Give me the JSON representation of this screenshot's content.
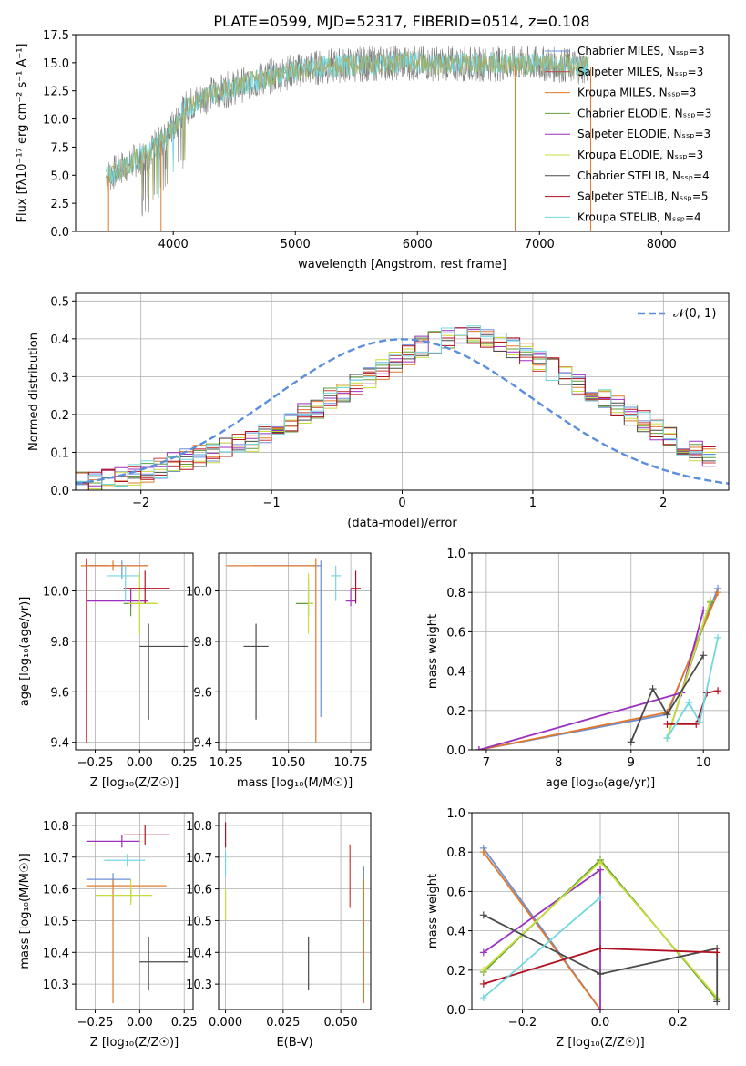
{
  "page": {
    "title": "PLATE=0599, MJD=52317, FIBERID=0514, z=0.108"
  },
  "colors": {
    "Chabrier MILES": "#6a8fd8",
    "Salpeter MILES": "#cc3b3b",
    "Kroupa MILES": "#e0782a",
    "Chabrier ELODIE": "#5f9e3a",
    "Salpeter ELODIE": "#9b30c0",
    "Kroupa ELODIE": "#c8dc3a",
    "Chabrier STELIB": "#4a4a4a",
    "Salpeter STELIB": "#b01020",
    "Kroupa STELIB": "#70d8e0"
  },
  "chart_data": [
    {
      "id": "spectrum",
      "type": "line",
      "xlabel": "wavelength [Angstrom, rest frame]",
      "ylabel": "Flux [fλ10⁻¹⁷ erg cm⁻² s⁻¹ A⁻¹]",
      "xlim": [
        3200,
        8550
      ],
      "ylim": [
        0,
        17.5
      ],
      "xticks": [
        4000,
        5000,
        6000,
        7000,
        8000
      ],
      "yticks": [
        0.0,
        2.5,
        5.0,
        7.5,
        10.0,
        12.5,
        15.0,
        17.5
      ],
      "ytick_labels": [
        "0.0",
        "2.5",
        "5.0",
        "7.5",
        "10.0",
        "12.5",
        "15.0",
        "17.5"
      ],
      "grid": false,
      "legend": "right",
      "legend_entries": [
        "Chabrier MILES, N_SSP=3",
        "Salpeter MILES, N_SSP=3",
        "Kroupa MILES, N_SSP=3",
        "Chabrier ELODIE, N_SSP=3",
        "Salpeter ELODIE, N_SSP=3",
        "Kroupa ELODIE, N_SSP=3",
        "Chabrier STELIB, N_SSP=4",
        "Salpeter STELIB, N_SSP=5",
        "Kroupa STELIB, N_SSP=4"
      ],
      "continuum": {
        "x": [
          3450,
          3600,
          3800,
          3950,
          4100,
          4300,
          4500,
          4800,
          5100,
          5400,
          5800,
          6200,
          6600,
          7000,
          7300,
          7400
        ],
        "y": [
          4.8,
          5.8,
          7.0,
          8.5,
          11.0,
          12.2,
          12.8,
          13.8,
          14.5,
          14.8,
          15.0,
          14.9,
          14.9,
          14.9,
          14.7,
          14.6
        ]
      }
    },
    {
      "id": "residuals",
      "type": "histogram",
      "xlabel": "(data-model)/error",
      "ylabel": "Normed distribution",
      "xlim": [
        -2.5,
        2.5
      ],
      "ylim": [
        0,
        0.52
      ],
      "xticks": [
        -2,
        -1,
        0,
        1,
        2
      ],
      "xtick_labels": [
        "−2",
        "−1",
        "0",
        "1",
        "2"
      ],
      "yticks": [
        0.0,
        0.1,
        0.2,
        0.3,
        0.4,
        0.5
      ],
      "ytick_labels": [
        "0.0",
        "0.1",
        "0.2",
        "0.3",
        "0.4",
        "0.5"
      ],
      "grid": true,
      "legend": "top-right",
      "legend_entries": [
        "𝒩(0, 1)"
      ],
      "bin_width": 0.1,
      "bin_start": -2.5,
      "base_profile": [
        0.02,
        0.02,
        0.03,
        0.03,
        0.04,
        0.05,
        0.06,
        0.07,
        0.08,
        0.09,
        0.1,
        0.11,
        0.12,
        0.13,
        0.15,
        0.16,
        0.18,
        0.2,
        0.22,
        0.24,
        0.26,
        0.28,
        0.3,
        0.32,
        0.34,
        0.36,
        0.38,
        0.39,
        0.4,
        0.41,
        0.41,
        0.4,
        0.39,
        0.38,
        0.36,
        0.34,
        0.32,
        0.3,
        0.28,
        0.26,
        0.24,
        0.22,
        0.2,
        0.18,
        0.16,
        0.14,
        0.12,
        0.1,
        0.09
      ]
    },
    {
      "id": "age_vs_Z",
      "type": "errorbar",
      "xlabel": "Z [log₁₀(Z/Z☉)]",
      "ylabel": "age  [log₁₀(age/yr)]",
      "xlim": [
        -0.36,
        0.3
      ],
      "ylim": [
        9.37,
        10.15
      ],
      "xticks": [
        -0.25,
        0.0,
        0.25
      ],
      "xtick_labels": [
        "−0.25",
        "0.00",
        "0.25"
      ],
      "yticks": [
        9.4,
        9.6,
        9.8,
        10.0
      ],
      "ytick_labels": [
        "9.4",
        "9.6",
        "9.8",
        "10.0"
      ],
      "grid": true,
      "points": [
        {
          "series": "Chabrier MILES",
          "x": -0.1,
          "y": 10.1,
          "xerr": [
            0.2,
            0.14
          ],
          "yerr": [
            0.05,
            0.02
          ]
        },
        {
          "series": "Salpeter MILES",
          "x": -0.3,
          "y": 10.1,
          "xerr": [
            0.01,
            0.12
          ],
          "yerr": [
            0.7,
            0.03
          ]
        },
        {
          "series": "Kroupa MILES",
          "x": -0.15,
          "y": 10.1,
          "xerr": [
            0.18,
            0.2
          ],
          "yerr": [
            0.02,
            0.02
          ]
        },
        {
          "series": "Chabrier ELODIE",
          "x": -0.05,
          "y": 9.95,
          "xerr": [
            0.04,
            0.14
          ],
          "yerr": [
            0.05,
            0.05
          ]
        },
        {
          "series": "Salpeter ELODIE",
          "x": -0.05,
          "y": 9.96,
          "xerr": [
            0.25,
            0.1
          ],
          "yerr": [
            0.02,
            0.05
          ]
        },
        {
          "series": "Kroupa ELODIE",
          "x": 0.0,
          "y": 9.95,
          "xerr": [
            0.06,
            0.1
          ],
          "yerr": [
            0.12,
            0.12
          ]
        },
        {
          "series": "Chabrier STELIB",
          "x": 0.05,
          "y": 9.78,
          "xerr": [
            0.05,
            0.22
          ],
          "yerr": [
            0.29,
            0.09
          ]
        },
        {
          "series": "Salpeter STELIB",
          "x": 0.03,
          "y": 10.01,
          "xerr": [
            0.12,
            0.14
          ],
          "yerr": [
            0.06,
            0.07
          ]
        },
        {
          "series": "Kroupa STELIB",
          "x": -0.08,
          "y": 10.06,
          "xerr": [
            0.1,
            0.08
          ],
          "yerr": [
            0.1,
            0.04
          ]
        }
      ]
    },
    {
      "id": "age_vs_mass",
      "type": "errorbar",
      "xlabel": "mass [log₁₀(M/M☉)]",
      "xlim": [
        10.22,
        10.83
      ],
      "ylim": [
        9.37,
        10.15
      ],
      "xticks": [
        10.25,
        10.5,
        10.75
      ],
      "xtick_labels": [
        "10.25",
        "10.50",
        "10.75"
      ],
      "yticks": [
        9.4,
        9.6,
        9.8,
        10.0
      ],
      "ytick_labels": [
        "9.4",
        "9.6",
        "9.8",
        "10.0"
      ],
      "grid": true,
      "points": [
        {
          "series": "Chabrier MILES",
          "x": 10.63,
          "y": 10.1,
          "xerr": [
            0.27,
            0.0
          ],
          "yerr": [
            0.6,
            0.02
          ]
        },
        {
          "series": "Kroupa MILES",
          "x": 10.61,
          "y": 10.1,
          "xerr": [
            0.36,
            0.0
          ],
          "yerr": [
            0.7,
            0.03
          ]
        },
        {
          "series": "Chabrier ELODIE",
          "x": 10.58,
          "y": 9.95,
          "xerr": [
            0.05,
            0.02
          ],
          "yerr": [
            0.05,
            0.1
          ]
        },
        {
          "series": "Salpeter ELODIE",
          "x": 10.75,
          "y": 9.96,
          "xerr": [
            0.02,
            0.02
          ],
          "yerr": [
            0.02,
            0.05
          ]
        },
        {
          "series": "Kroupa ELODIE",
          "x": 10.58,
          "y": 9.95,
          "xerr": [
            0.0,
            0.02
          ],
          "yerr": [
            0.12,
            0.12
          ]
        },
        {
          "series": "Chabrier STELIB",
          "x": 10.37,
          "y": 9.78,
          "xerr": [
            0.05,
            0.05
          ],
          "yerr": [
            0.29,
            0.09
          ]
        },
        {
          "series": "Salpeter STELIB",
          "x": 10.77,
          "y": 10.01,
          "xerr": [
            0.02,
            0.02
          ],
          "yerr": [
            0.06,
            0.07
          ]
        },
        {
          "series": "Kroupa STELIB",
          "x": 10.69,
          "y": 10.06,
          "xerr": [
            0.02,
            0.02
          ],
          "yerr": [
            0.1,
            0.04
          ]
        }
      ]
    },
    {
      "id": "massweight_vs_age",
      "type": "line",
      "xlabel": "age  [log₁₀(age/yr)]",
      "ylabel": "mass weight",
      "xlim": [
        6.8,
        10.35
      ],
      "ylim": [
        0,
        1.0
      ],
      "xticks": [
        7,
        8,
        9,
        10
      ],
      "xtick_labels": [
        "7",
        "8",
        "9",
        "10"
      ],
      "yticks": [
        0.0,
        0.2,
        0.4,
        0.6,
        0.8,
        1.0
      ],
      "ytick_labels": [
        "0.0",
        "0.2",
        "0.4",
        "0.6",
        "0.8",
        "1.0"
      ],
      "grid": true,
      "series": [
        {
          "series": "Chabrier MILES",
          "x": [
            6.9,
            9.5,
            10.2
          ],
          "y": [
            0.0,
            0.18,
            0.82
          ]
        },
        {
          "series": "Kroupa MILES",
          "x": [
            6.9,
            9.5,
            10.2
          ],
          "y": [
            0.0,
            0.19,
            0.8
          ]
        },
        {
          "series": "Salpeter ELODIE",
          "x": [
            6.9,
            9.7,
            10.0
          ],
          "y": [
            0.0,
            0.29,
            0.71
          ]
        },
        {
          "series": "Chabrier ELODIE",
          "x": [
            9.5,
            10.1
          ],
          "y": [
            0.06,
            0.75
          ]
        },
        {
          "series": "Kroupa ELODIE",
          "x": [
            9.5,
            10.1
          ],
          "y": [
            0.06,
            0.76
          ]
        },
        {
          "series": "Chabrier STELIB",
          "x": [
            9.0,
            9.3,
            9.5,
            10.0
          ],
          "y": [
            0.04,
            0.31,
            0.18,
            0.48
          ]
        },
        {
          "series": "Salpeter STELIB",
          "x": [
            9.5,
            9.9,
            10.05,
            10.2
          ],
          "y": [
            0.13,
            0.13,
            0.29,
            0.3
          ]
        },
        {
          "series": "Kroupa STELIB",
          "x": [
            9.5,
            9.8,
            9.95,
            10.2
          ],
          "y": [
            0.06,
            0.24,
            0.14,
            0.57
          ]
        }
      ]
    },
    {
      "id": "mass_vs_Z",
      "type": "errorbar",
      "xlabel": "Z [log₁₀(Z/Z☉)]",
      "ylabel": "mass [log₁₀(M/M☉)]",
      "xlim": [
        -0.36,
        0.3
      ],
      "ylim": [
        10.22,
        10.84
      ],
      "xticks": [
        -0.25,
        0.0,
        0.25
      ],
      "xtick_labels": [
        "−0.25",
        "0.00",
        "0.25"
      ],
      "yticks": [
        10.3,
        10.4,
        10.5,
        10.6,
        10.7,
        10.8
      ],
      "ytick_labels": [
        "10.3",
        "10.4",
        "10.5",
        "10.6",
        "10.7",
        "10.8"
      ],
      "grid": true,
      "points": [
        {
          "series": "Chabrier MILES",
          "x": -0.15,
          "y": 10.63,
          "xerr": [
            0.15,
            0.1
          ],
          "yerr": [
            0.02,
            0.02
          ]
        },
        {
          "series": "Kroupa MILES",
          "x": -0.15,
          "y": 10.61,
          "xerr": [
            0.15,
            0.3
          ],
          "yerr": [
            0.37,
            0.02
          ]
        },
        {
          "series": "Salpeter ELODIE",
          "x": -0.1,
          "y": 10.75,
          "xerr": [
            0.2,
            0.1
          ],
          "yerr": [
            0.02,
            0.02
          ]
        },
        {
          "series": "Chabrier ELODIE",
          "x": -0.05,
          "y": 10.58,
          "xerr": [
            0.2,
            0.12
          ],
          "yerr": [
            0.02,
            0.02
          ]
        },
        {
          "series": "Kroupa ELODIE",
          "x": -0.05,
          "y": 10.58,
          "xerr": [
            0.2,
            0.12
          ],
          "yerr": [
            0.03,
            0.05
          ]
        },
        {
          "series": "Chabrier STELIB",
          "x": 0.05,
          "y": 10.37,
          "xerr": [
            0.05,
            0.22
          ],
          "yerr": [
            0.09,
            0.08
          ]
        },
        {
          "series": "Salpeter STELIB",
          "x": 0.03,
          "y": 10.77,
          "xerr": [
            0.12,
            0.14
          ],
          "yerr": [
            0.03,
            0.03
          ]
        },
        {
          "series": "Kroupa STELIB",
          "x": -0.07,
          "y": 10.69,
          "xerr": [
            0.13,
            0.1
          ],
          "yerr": [
            0.02,
            0.02
          ]
        }
      ]
    },
    {
      "id": "mass_vs_EBV",
      "type": "errorbar",
      "xlabel": "E(B-V)",
      "xlim": [
        -0.003,
        0.063
      ],
      "ylim": [
        10.22,
        10.84
      ],
      "xticks": [
        0.0,
        0.025,
        0.05
      ],
      "xtick_labels": [
        "0.000",
        "0.025",
        "0.050"
      ],
      "yticks": [
        10.3,
        10.4,
        10.5,
        10.6,
        10.7,
        10.8
      ],
      "ytick_labels": [
        "10.3",
        "10.4",
        "10.5",
        "10.6",
        "10.7",
        "10.8"
      ],
      "grid": true,
      "points": [
        {
          "series": "Salpeter STELIB",
          "x": 0.0,
          "y": 10.77,
          "xerr": [
            0,
            0
          ],
          "yerr": [
            0.04,
            0.04
          ]
        },
        {
          "series": "Kroupa STELIB",
          "x": 0.0,
          "y": 10.68,
          "xerr": [
            0,
            0
          ],
          "yerr": [
            0.04,
            0.04
          ]
        },
        {
          "series": "Kroupa ELODIE",
          "x": 0.0,
          "y": 10.55,
          "xerr": [
            0,
            0
          ],
          "yerr": [
            0.05,
            0.05
          ]
        },
        {
          "series": "Chabrier STELIB",
          "x": 0.036,
          "y": 10.37,
          "xerr": [
            0,
            0
          ],
          "yerr": [
            0.09,
            0.08
          ]
        },
        {
          "series": "Salpeter MILES",
          "x": 0.054,
          "y": 10.64,
          "xerr": [
            0,
            0
          ],
          "yerr": [
            0.1,
            0.1
          ]
        },
        {
          "series": "Chabrier MILES",
          "x": 0.06,
          "y": 10.63,
          "xerr": [
            0,
            0
          ],
          "yerr": [
            0.02,
            0.04
          ]
        },
        {
          "series": "Kroupa MILES",
          "x": 0.06,
          "y": 10.45,
          "xerr": [
            0,
            0
          ],
          "yerr": [
            0.21,
            0.18
          ]
        }
      ]
    },
    {
      "id": "massweight_vs_Z",
      "type": "line",
      "xlabel": "Z [log₁₀(Z/Z☉)]",
      "ylabel": "mass weight",
      "xlim": [
        -0.33,
        0.33
      ],
      "ylim": [
        0,
        1.0
      ],
      "xticks": [
        -0.2,
        0.0,
        0.2
      ],
      "xtick_labels": [
        "−0.2",
        "0.0",
        "0.2"
      ],
      "yticks": [
        0.0,
        0.2,
        0.4,
        0.6,
        0.8,
        1.0
      ],
      "ytick_labels": [
        "0.0",
        "0.2",
        "0.4",
        "0.6",
        "0.8",
        "1.0"
      ],
      "grid": true,
      "series": [
        {
          "series": "Chabrier MILES",
          "x": [
            -0.3,
            0.0
          ],
          "y": [
            0.82,
            0.0
          ]
        },
        {
          "series": "Kroupa MILES",
          "x": [
            -0.3,
            0.0
          ],
          "y": [
            0.8,
            0.0
          ]
        },
        {
          "series": "Salpeter ELODIE",
          "x": [
            -0.3,
            0.0,
            0.0
          ],
          "y": [
            0.29,
            0.71,
            0.0
          ]
        },
        {
          "series": "Chabrier ELODIE",
          "x": [
            -0.3,
            0.0,
            0.3
          ],
          "y": [
            0.19,
            0.76,
            0.05
          ]
        },
        {
          "series": "Kroupa ELODIE",
          "x": [
            -0.3,
            0.0,
            0.3
          ],
          "y": [
            0.2,
            0.75,
            0.06
          ]
        },
        {
          "series": "Chabrier STELIB",
          "x": [
            -0.3,
            0.0,
            0.3,
            0.3
          ],
          "y": [
            0.48,
            0.18,
            0.31,
            0.04
          ]
        },
        {
          "series": "Salpeter STELIB",
          "x": [
            -0.3,
            0.0,
            0.3
          ],
          "y": [
            0.13,
            0.31,
            0.29
          ]
        },
        {
          "series": "Kroupa STELIB",
          "x": [
            -0.3,
            0.0
          ],
          "y": [
            0.06,
            0.57
          ]
        }
      ]
    }
  ]
}
